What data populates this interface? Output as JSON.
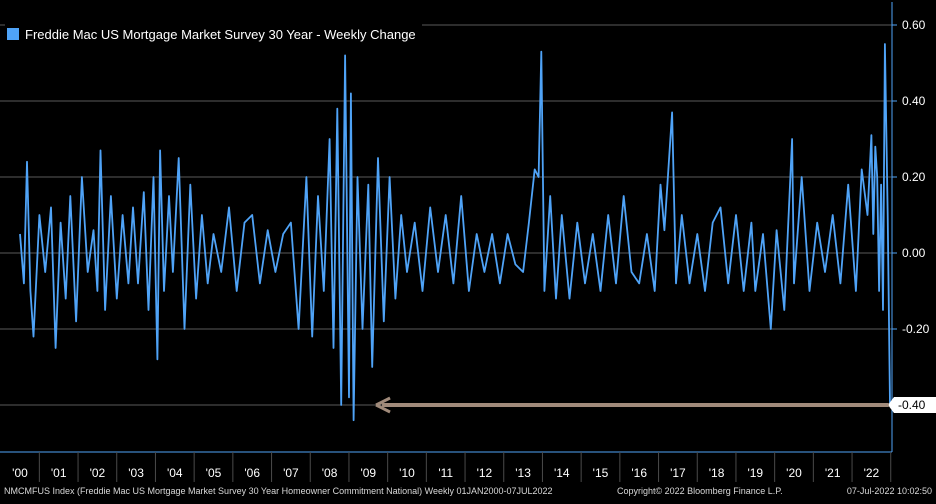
{
  "chart_data": {
    "type": "line",
    "legend": "Freddie Mac US Mortgage Market Survey 30 Year - Weekly Change",
    "legend_placement": "top-left",
    "y_ticks": [
      "0.60",
      "0.40",
      "0.20",
      "0.00",
      "-0.20",
      "-0.40"
    ],
    "ylim": [
      -0.44,
      0.62
    ],
    "x_tick_labels": [
      "'00",
      "'01",
      "'02",
      "'03",
      "'04",
      "'05",
      "'06",
      "'07",
      "'08",
      "'09",
      "'10",
      "'11",
      "'12",
      "'13",
      "'14",
      "'15",
      "'16",
      "'17",
      "'18",
      "'19",
      "'20",
      "'21",
      "'22"
    ],
    "grid": "horizontal",
    "last_value_label": "-0.40",
    "annotation": "arrow pointing left at the -0.40 level",
    "series": [
      {
        "color": "#4fa3f7",
        "points": [
          [
            2000.0,
            0.05
          ],
          [
            2000.1,
            -0.08
          ],
          [
            2000.18,
            0.24
          ],
          [
            2000.27,
            -0.1
          ],
          [
            2000.35,
            -0.22
          ],
          [
            2000.5,
            0.1
          ],
          [
            2000.65,
            -0.05
          ],
          [
            2000.8,
            0.12
          ],
          [
            2000.92,
            -0.25
          ],
          [
            2001.05,
            0.08
          ],
          [
            2001.18,
            -0.12
          ],
          [
            2001.3,
            0.15
          ],
          [
            2001.45,
            -0.18
          ],
          [
            2001.6,
            0.2
          ],
          [
            2001.75,
            -0.05
          ],
          [
            2001.9,
            0.06
          ],
          [
            2002.0,
            -0.1
          ],
          [
            2002.08,
            0.27
          ],
          [
            2002.2,
            -0.15
          ],
          [
            2002.35,
            0.15
          ],
          [
            2002.5,
            -0.12
          ],
          [
            2002.65,
            0.1
          ],
          [
            2002.8,
            -0.08
          ],
          [
            2002.92,
            0.12
          ],
          [
            2003.05,
            -0.08
          ],
          [
            2003.2,
            0.16
          ],
          [
            2003.32,
            -0.15
          ],
          [
            2003.45,
            0.2
          ],
          [
            2003.55,
            -0.28
          ],
          [
            2003.62,
            0.27
          ],
          [
            2003.72,
            -0.1
          ],
          [
            2003.85,
            0.15
          ],
          [
            2003.95,
            -0.05
          ],
          [
            2004.1,
            0.25
          ],
          [
            2004.25,
            -0.2
          ],
          [
            2004.4,
            0.18
          ],
          [
            2004.55,
            -0.12
          ],
          [
            2004.7,
            0.1
          ],
          [
            2004.85,
            -0.08
          ],
          [
            2005.0,
            0.05
          ],
          [
            2005.2,
            -0.05
          ],
          [
            2005.4,
            0.12
          ],
          [
            2005.6,
            -0.1
          ],
          [
            2005.8,
            0.08
          ],
          [
            2006.0,
            0.1
          ],
          [
            2006.2,
            -0.08
          ],
          [
            2006.4,
            0.06
          ],
          [
            2006.6,
            -0.05
          ],
          [
            2006.8,
            0.05
          ],
          [
            2007.0,
            0.08
          ],
          [
            2007.2,
            -0.2
          ],
          [
            2007.4,
            0.2
          ],
          [
            2007.55,
            -0.22
          ],
          [
            2007.7,
            0.15
          ],
          [
            2007.85,
            -0.1
          ],
          [
            2008.0,
            0.3
          ],
          [
            2008.1,
            -0.25
          ],
          [
            2008.2,
            0.38
          ],
          [
            2008.3,
            -0.4
          ],
          [
            2008.4,
            0.52
          ],
          [
            2008.5,
            -0.38
          ],
          [
            2008.55,
            0.42
          ],
          [
            2008.62,
            -0.44
          ],
          [
            2008.72,
            0.2
          ],
          [
            2008.85,
            -0.2
          ],
          [
            2009.0,
            0.18
          ],
          [
            2009.1,
            -0.3
          ],
          [
            2009.25,
            0.25
          ],
          [
            2009.4,
            -0.18
          ],
          [
            2009.55,
            0.2
          ],
          [
            2009.7,
            -0.12
          ],
          [
            2009.85,
            0.1
          ],
          [
            2010.0,
            -0.05
          ],
          [
            2010.2,
            0.08
          ],
          [
            2010.4,
            -0.1
          ],
          [
            2010.6,
            0.12
          ],
          [
            2010.8,
            -0.05
          ],
          [
            2011.0,
            0.1
          ],
          [
            2011.2,
            -0.08
          ],
          [
            2011.4,
            0.15
          ],
          [
            2011.6,
            -0.1
          ],
          [
            2011.8,
            0.05
          ],
          [
            2012.0,
            -0.05
          ],
          [
            2012.2,
            0.05
          ],
          [
            2012.4,
            -0.08
          ],
          [
            2012.6,
            0.05
          ],
          [
            2012.8,
            -0.03
          ],
          [
            2013.0,
            -0.05
          ],
          [
            2013.15,
            0.08
          ],
          [
            2013.3,
            0.22
          ],
          [
            2013.4,
            0.2
          ],
          [
            2013.47,
            0.53
          ],
          [
            2013.55,
            -0.1
          ],
          [
            2013.7,
            0.15
          ],
          [
            2013.85,
            -0.12
          ],
          [
            2014.0,
            0.1
          ],
          [
            2014.2,
            -0.12
          ],
          [
            2014.4,
            0.08
          ],
          [
            2014.6,
            -0.08
          ],
          [
            2014.8,
            0.05
          ],
          [
            2015.0,
            -0.1
          ],
          [
            2015.2,
            0.1
          ],
          [
            2015.4,
            -0.08
          ],
          [
            2015.6,
            0.15
          ],
          [
            2015.8,
            -0.05
          ],
          [
            2016.0,
            -0.08
          ],
          [
            2016.2,
            0.05
          ],
          [
            2016.4,
            -0.1
          ],
          [
            2016.55,
            0.18
          ],
          [
            2016.65,
            0.06
          ],
          [
            2016.85,
            0.37
          ],
          [
            2016.95,
            -0.08
          ],
          [
            2017.1,
            0.1
          ],
          [
            2017.3,
            -0.08
          ],
          [
            2017.5,
            0.05
          ],
          [
            2017.7,
            -0.1
          ],
          [
            2017.9,
            0.08
          ],
          [
            2018.1,
            0.12
          ],
          [
            2018.3,
            -0.08
          ],
          [
            2018.5,
            0.1
          ],
          [
            2018.7,
            -0.1
          ],
          [
            2018.9,
            0.08
          ],
          [
            2019.0,
            -0.1
          ],
          [
            2019.2,
            0.05
          ],
          [
            2019.4,
            -0.2
          ],
          [
            2019.55,
            0.06
          ],
          [
            2019.75,
            -0.15
          ],
          [
            2019.95,
            0.3
          ],
          [
            2020.0,
            -0.08
          ],
          [
            2020.2,
            0.2
          ],
          [
            2020.4,
            -0.1
          ],
          [
            2020.6,
            0.08
          ],
          [
            2020.8,
            -0.05
          ],
          [
            2021.0,
            0.1
          ],
          [
            2021.2,
            -0.08
          ],
          [
            2021.4,
            0.18
          ],
          [
            2021.6,
            -0.1
          ],
          [
            2021.75,
            0.22
          ],
          [
            2021.9,
            0.1
          ],
          [
            2022.0,
            0.31
          ],
          [
            2022.05,
            0.05
          ],
          [
            2022.1,
            0.28
          ],
          [
            2022.15,
            0.2
          ],
          [
            2022.2,
            -0.1
          ],
          [
            2022.25,
            0.18
          ],
          [
            2022.3,
            -0.15
          ],
          [
            2022.35,
            0.55
          ],
          [
            2022.42,
            0.1
          ],
          [
            2022.48,
            -0.4
          ]
        ]
      }
    ]
  },
  "footer": {
    "source": "NMCMFUS Index (Freddie Mac US Mortgage Market Survey 30 Year Homeowner Commitment National) Weekly 01JAN2000-07JUL2022",
    "copyright": "Copyright© 2022 Bloomberg Finance L.P.",
    "timestamp": "07-Jul-2022 10:02:50"
  }
}
